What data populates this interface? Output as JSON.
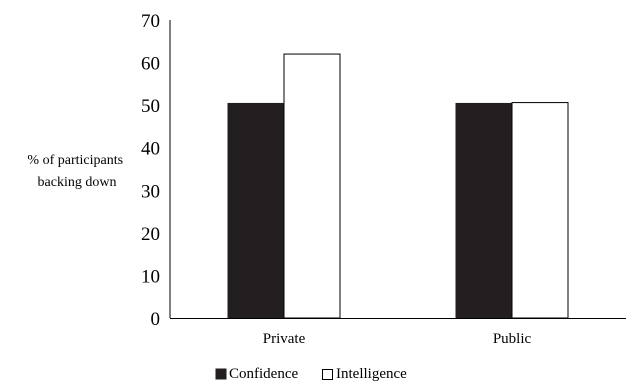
{
  "chart_data": {
    "type": "bar",
    "title": "",
    "xlabel": "",
    "ylabel": [
      "% of participants",
      "backing down"
    ],
    "categories": [
      "Private",
      "Public"
    ],
    "series": [
      {
        "name": "Confidence",
        "values": [
          50.4,
          50.4
        ],
        "fill": "#231f20",
        "stroke": "#231f20"
      },
      {
        "name": "Intelligence",
        "values": [
          62.0,
          50.6
        ],
        "fill": "#ffffff",
        "stroke": "#000000"
      }
    ],
    "ylim": [
      0,
      70
    ],
    "yticks": [
      0,
      10,
      20,
      30,
      40,
      50,
      60,
      70
    ],
    "grid": false,
    "legend": "bottom"
  }
}
